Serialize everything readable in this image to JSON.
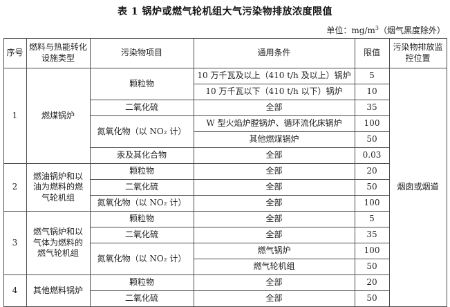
{
  "title": "表 1  锅炉或燃气轮机组大气污染物排放浓度限值",
  "unit": {
    "prefix": "单位：mg/m",
    "sup": "3",
    "suffix": "（烟气黑度除外）"
  },
  "table": {
    "headers": [
      "序号",
      "燃料与热能转化设施类型",
      "污染物项目",
      "通用条件",
      "限值",
      "污染物排放监控位置"
    ],
    "monitor_location": "烟囱或烟道",
    "groups": [
      {
        "seq": "1",
        "facility": "燃煤锅炉",
        "pollutants": [
          {
            "name": "颗粒物",
            "conditions": [
              {
                "condition": "10 万千瓦及以上（410 t/h 及以上）锅炉",
                "limit": "5"
              },
              {
                "condition": "10 万千瓦以下（410 t/h 以下）锅炉",
                "limit": "10"
              }
            ]
          },
          {
            "name": "二氧化硫",
            "conditions": [
              {
                "condition": "全部",
                "limit": "35"
              }
            ]
          },
          {
            "name": "氮氧化物（以 NO₂ 计）",
            "conditions": [
              {
                "condition": "W 型火焰炉膛锅炉、循环流化床锅炉",
                "limit": "100"
              },
              {
                "condition": "其他燃煤锅炉",
                "limit": "50"
              }
            ]
          },
          {
            "name": "汞及其化合物",
            "conditions": [
              {
                "condition": "全部",
                "limit": "0.03"
              }
            ]
          }
        ]
      },
      {
        "seq": "2",
        "facility": "燃油锅炉和以油为燃料的燃气轮机组",
        "pollutants": [
          {
            "name": "颗粒物",
            "conditions": [
              {
                "condition": "全部",
                "limit": "20"
              }
            ]
          },
          {
            "name": "二氧化硫",
            "conditions": [
              {
                "condition": "全部",
                "limit": "50"
              }
            ]
          },
          {
            "name": "氮氧化物（以 NO₂ 计）",
            "conditions": [
              {
                "condition": "全部",
                "limit": "100"
              }
            ]
          }
        ]
      },
      {
        "seq": "3",
        "facility": "燃气锅炉和以气体为燃料的燃气轮机组",
        "pollutants": [
          {
            "name": "颗粒物",
            "conditions": [
              {
                "condition": "全部",
                "limit": "5"
              }
            ]
          },
          {
            "name": "二氧化硫",
            "conditions": [
              {
                "condition": "全部",
                "limit": "35"
              }
            ]
          },
          {
            "name": "氮氧化物（以 NO₂ 计）",
            "conditions": [
              {
                "condition": "燃气锅炉",
                "limit": "100"
              },
              {
                "condition": "燃气轮机组",
                "limit": "50"
              }
            ]
          }
        ]
      },
      {
        "seq": "4",
        "facility": "其他燃料锅炉",
        "pollutants": [
          {
            "name": "颗粒物",
            "conditions": [
              {
                "condition": "全部",
                "limit": "20"
              }
            ]
          },
          {
            "name": "二氧化硫",
            "conditions": [
              {
                "condition": "全部",
                "limit": "50"
              }
            ]
          }
        ]
      }
    ]
  }
}
